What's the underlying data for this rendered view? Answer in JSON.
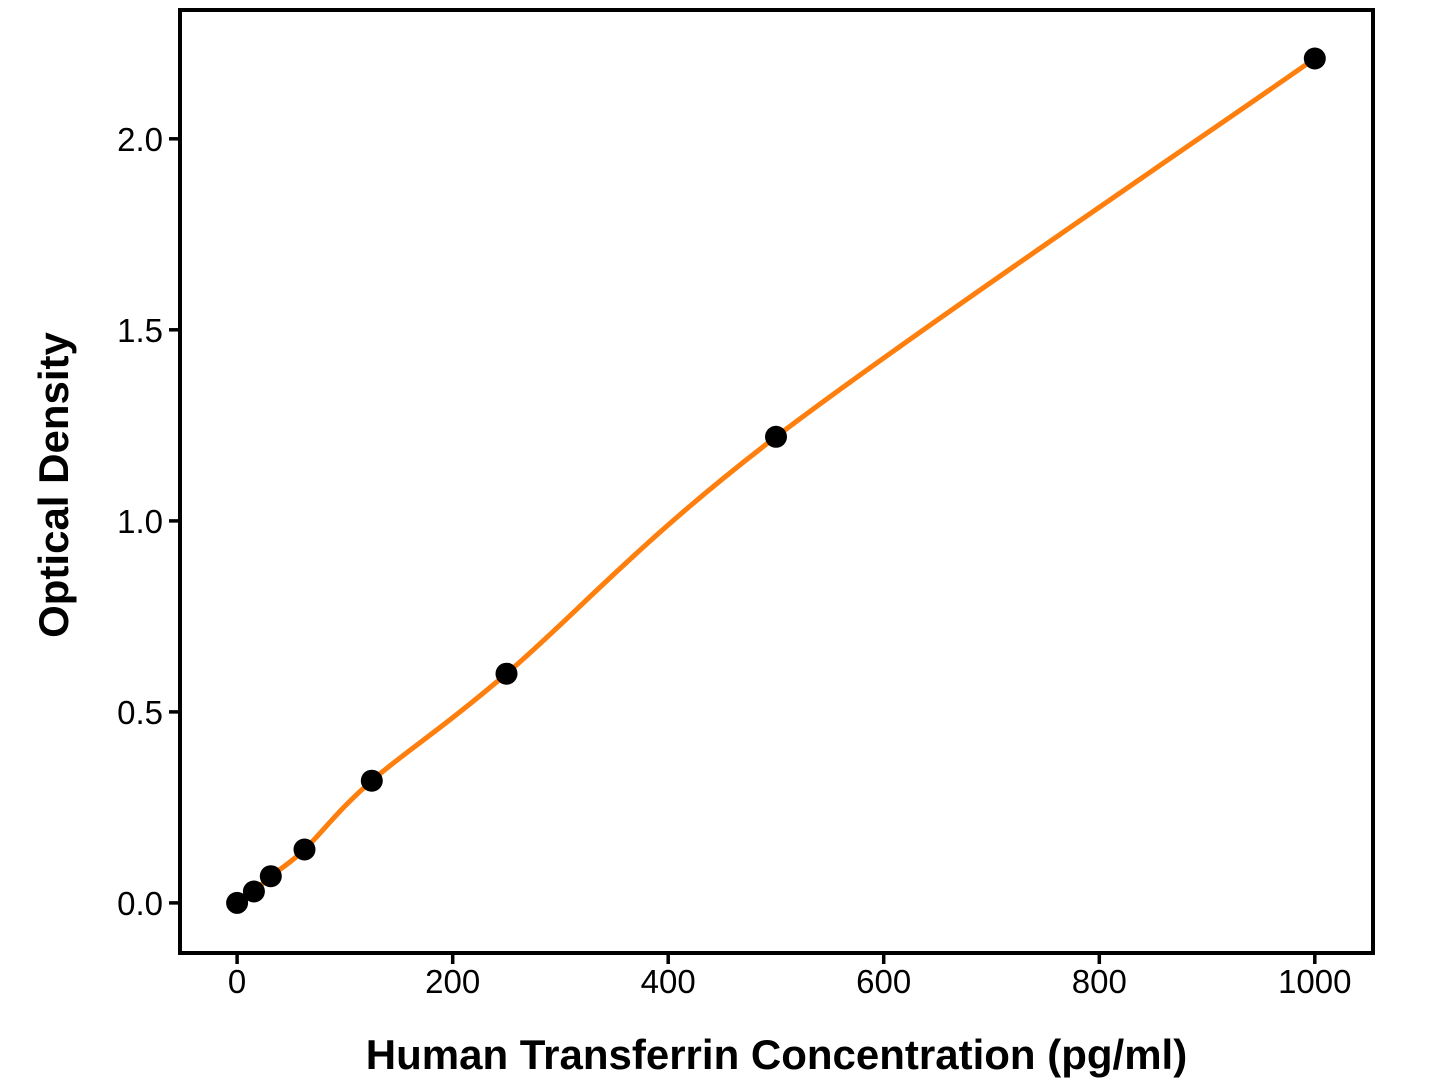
{
  "figure": {
    "background": "#ffffff"
  },
  "chart_data": {
    "type": "line",
    "title": "",
    "xlabel": "Human Transferrin Concentration (pg/ml)",
    "ylabel": "Optical Density",
    "x": [
      0,
      15.6,
      31.25,
      62.5,
      125,
      250,
      500,
      1000
    ],
    "y": [
      0.0,
      0.03,
      0.07,
      0.14,
      0.32,
      0.6,
      1.22,
      2.21
    ],
    "x_ticks": [
      0,
      200,
      400,
      600,
      800,
      1000
    ],
    "x_tick_labels": [
      "0",
      "200",
      "400",
      "600",
      "800",
      "1000"
    ],
    "y_ticks": [
      0.0,
      0.5,
      1.0,
      1.5,
      2.0
    ],
    "y_tick_labels": [
      "0.0",
      "0.5",
      "1.0",
      "1.5",
      "2.0"
    ],
    "xlim": [
      -53,
      1054
    ],
    "ylim": [
      -0.131,
      2.337
    ],
    "grid": false,
    "legend": false,
    "curve": "smooth",
    "marker": "circle",
    "line_color": "#FF7F0E",
    "marker_color": "#000000",
    "axis_color": "#000000",
    "text_color": "#000000"
  }
}
